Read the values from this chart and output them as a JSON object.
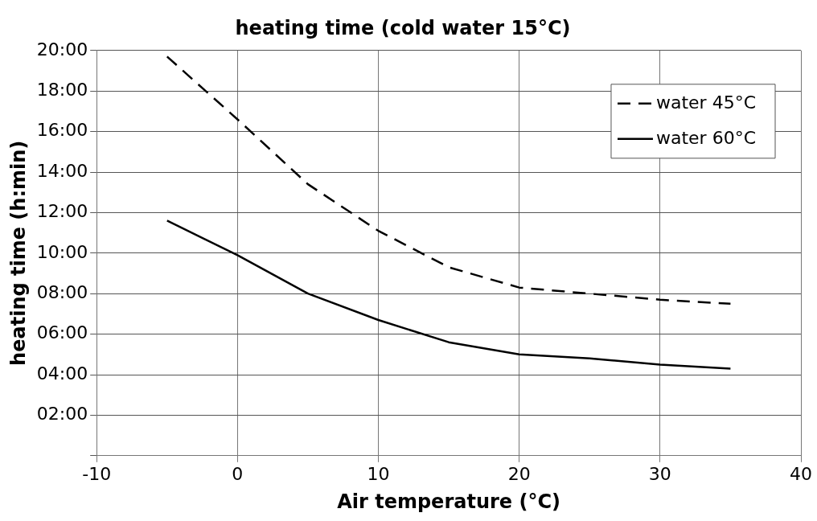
{
  "chart_data": {
    "type": "line",
    "title": "heating time (cold water 15°C)",
    "xlabel": "Air temperature (°C)",
    "ylabel": "heating time (h:min)",
    "x": [
      -5,
      0,
      5,
      10,
      15,
      20,
      25,
      30,
      35
    ],
    "series": [
      {
        "name": "water 45°C",
        "color": "#000000",
        "line_style": "dashed",
        "values": [
          19.7,
          16.6,
          13.4,
          11.1,
          9.3,
          8.3,
          8.0,
          7.7,
          7.5
        ]
      },
      {
        "name": "water 60°C",
        "color": "#000000",
        "line_style": "solid",
        "values": [
          11.6,
          9.9,
          8.0,
          6.7,
          5.6,
          5.0,
          4.8,
          4.5,
          4.3
        ]
      }
    ],
    "xlim": [
      -10,
      40
    ],
    "xticks": [
      -10,
      0,
      10,
      20,
      30,
      40
    ],
    "ylim": [
      0,
      20
    ],
    "yticks": [
      {
        "value": 0,
        "label": null
      },
      {
        "value": 2,
        "label": "02:00"
      },
      {
        "value": 4,
        "label": "04:00"
      },
      {
        "value": 6,
        "label": "06:00"
      },
      {
        "value": 8,
        "label": "08:00"
      },
      {
        "value": 10,
        "label": "10:00"
      },
      {
        "value": 12,
        "label": "12:00"
      },
      {
        "value": 14,
        "label": "14:00"
      },
      {
        "value": 16,
        "label": "16:00"
      },
      {
        "value": 18,
        "label": "18:00"
      },
      {
        "value": 20,
        "label": "20:00"
      }
    ],
    "grid": true,
    "legend": "top right",
    "marker": "none"
  }
}
